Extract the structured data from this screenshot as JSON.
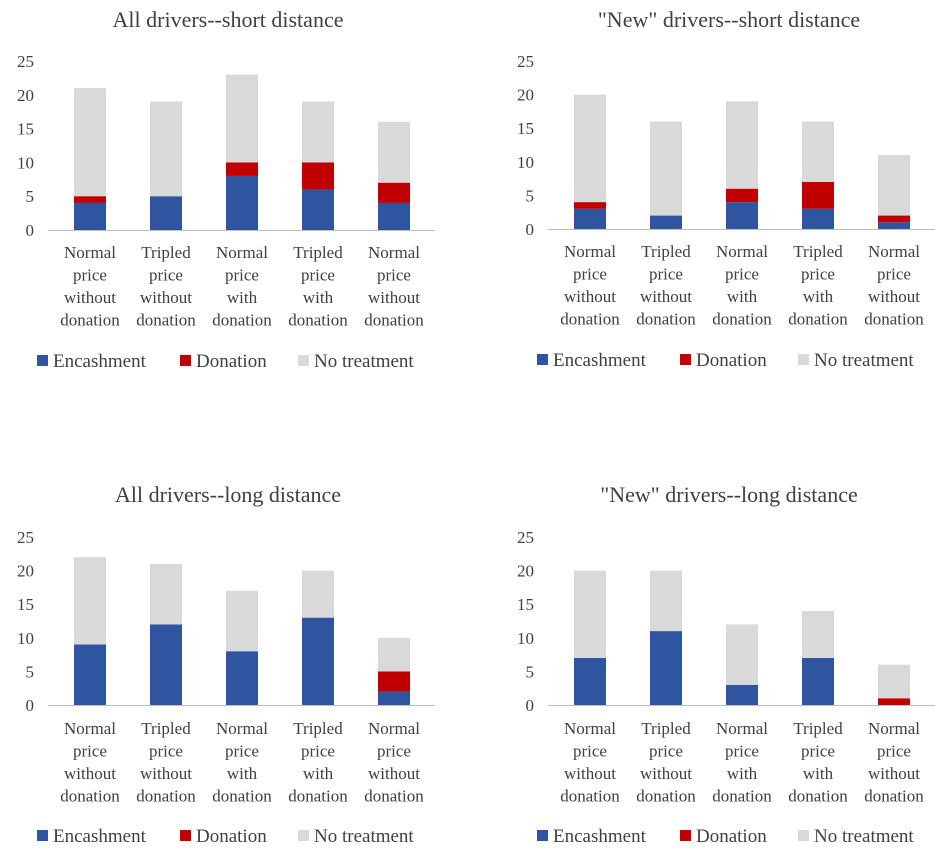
{
  "colors": {
    "encashment": "#2f55a0",
    "donation": "#c00000",
    "no_treatment": "#d9d9d9",
    "axis": "#bfbfbf",
    "text": "#404040"
  },
  "chart_data": [
    {
      "type": "bar",
      "stacked": true,
      "title": "All drivers--short distance",
      "categories": [
        [
          "Normal",
          "price",
          "without",
          "donation"
        ],
        [
          "Tripled",
          "price",
          "without",
          "donation"
        ],
        [
          "Normal",
          "price",
          "with",
          "donation"
        ],
        [
          "Tripled",
          "price",
          "with",
          "donation"
        ],
        [
          "Normal",
          "price",
          "without",
          "donation"
        ]
      ],
      "yticks": [
        "0",
        "5",
        "10",
        "15",
        "20",
        "25"
      ],
      "ylim": [
        0,
        25
      ],
      "legend_position": "bottom",
      "series": [
        {
          "name": "Encashment",
          "values": [
            4,
            5,
            8,
            6,
            4
          ]
        },
        {
          "name": "Donation",
          "values": [
            1,
            0,
            2,
            4,
            3
          ]
        },
        {
          "name": "No treatment",
          "values": [
            16,
            14,
            13,
            9,
            9
          ]
        }
      ]
    },
    {
      "type": "bar",
      "stacked": true,
      "title": "\"New\" drivers--short distance",
      "categories": [
        [
          "Normal",
          "price",
          "without",
          "donation"
        ],
        [
          "Tripled",
          "price",
          "without",
          "donation"
        ],
        [
          "Normal",
          "price",
          "with",
          "donation"
        ],
        [
          "Tripled",
          "price",
          "with",
          "donation"
        ],
        [
          "Normal",
          "price",
          "without",
          "donation"
        ]
      ],
      "yticks": [
        "0",
        "5",
        "10",
        "15",
        "20",
        "25"
      ],
      "ylim": [
        0,
        25
      ],
      "legend_position": "bottom",
      "series": [
        {
          "name": "Encashment",
          "values": [
            3,
            2,
            4,
            3,
            1
          ]
        },
        {
          "name": "Donation",
          "values": [
            1,
            0,
            2,
            4,
            1
          ]
        },
        {
          "name": "No treatment",
          "values": [
            16,
            14,
            13,
            9,
            9
          ]
        }
      ]
    },
    {
      "type": "bar",
      "stacked": true,
      "title": "All drivers--long distance",
      "categories": [
        [
          "Normal",
          "price",
          "without",
          "donation"
        ],
        [
          "Tripled",
          "price",
          "without",
          "donation"
        ],
        [
          "Normal",
          "price",
          "with",
          "donation"
        ],
        [
          "Tripled",
          "price",
          "with",
          "donation"
        ],
        [
          "Normal",
          "price",
          "without",
          "donation"
        ]
      ],
      "yticks": [
        "0",
        "5",
        "10",
        "15",
        "20",
        "25"
      ],
      "ylim": [
        0,
        25
      ],
      "legend_position": "bottom",
      "series": [
        {
          "name": "Encashment",
          "values": [
            9,
            12,
            8,
            13,
            2
          ]
        },
        {
          "name": "Donation",
          "values": [
            0,
            0,
            0,
            0,
            3
          ]
        },
        {
          "name": "No treatment",
          "values": [
            13,
            9,
            9,
            7,
            5
          ]
        }
      ]
    },
    {
      "type": "bar",
      "stacked": true,
      "title": "\"New\" drivers--long distance",
      "categories": [
        [
          "Normal",
          "price",
          "without",
          "donation"
        ],
        [
          "Tripled",
          "price",
          "without",
          "donation"
        ],
        [
          "Normal",
          "price",
          "with",
          "donation"
        ],
        [
          "Tripled",
          "price",
          "with",
          "donation"
        ],
        [
          "Normal",
          "price",
          "without",
          "donation"
        ]
      ],
      "yticks": [
        "0",
        "5",
        "10",
        "15",
        "20",
        "25"
      ],
      "ylim": [
        0,
        25
      ],
      "legend_position": "bottom",
      "series": [
        {
          "name": "Encashment",
          "values": [
            7,
            11,
            3,
            7,
            0
          ]
        },
        {
          "name": "Donation",
          "values": [
            0,
            0,
            0,
            0,
            1
          ]
        },
        {
          "name": "No treatment",
          "values": [
            13,
            9,
            9,
            7,
            5
          ]
        }
      ]
    }
  ]
}
